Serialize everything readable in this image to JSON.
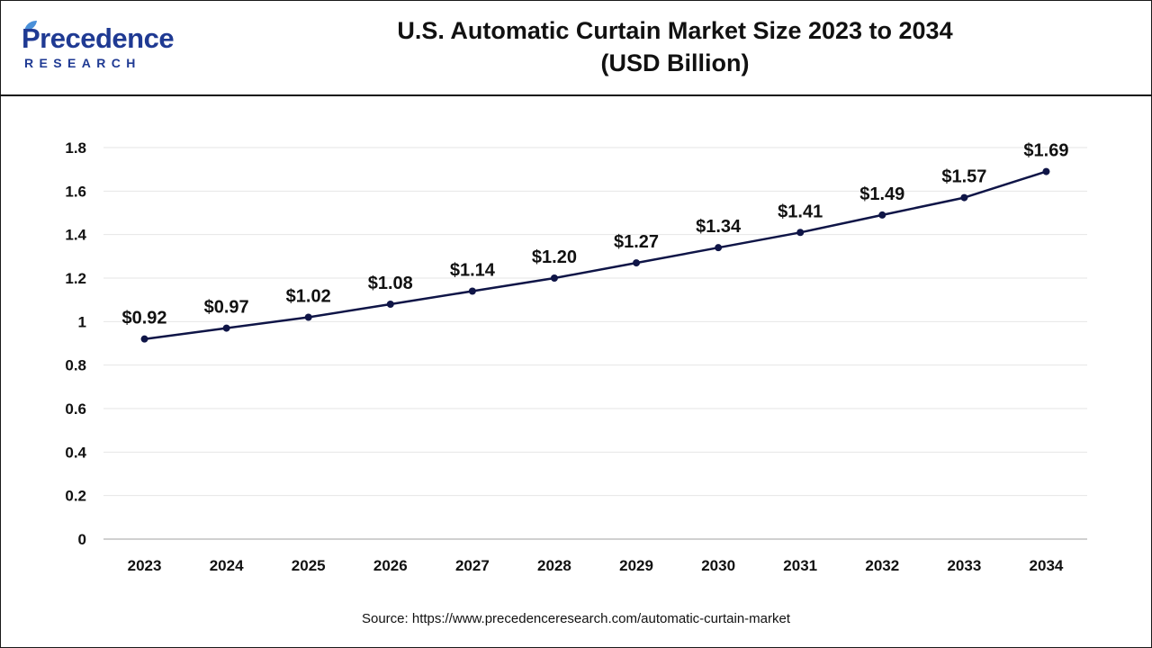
{
  "brand": {
    "name": "Precedence",
    "sub": "RESEARCH",
    "primary_color": "#1f3a93",
    "accent_color": "#4a90d9"
  },
  "title_lines": [
    "U.S. Automatic Curtain Market Size 2023 to 2034",
    "(USD Billion)"
  ],
  "source": "Source: https://www.precedenceresearch.com/automatic-curtain-market",
  "chart_data": {
    "type": "line",
    "x": [
      "2023",
      "2024",
      "2025",
      "2026",
      "2027",
      "2028",
      "2029",
      "2030",
      "2031",
      "2032",
      "2033",
      "2034"
    ],
    "series": [
      {
        "values": [
          0.92,
          0.97,
          1.02,
          1.08,
          1.14,
          1.2,
          1.27,
          1.34,
          1.41,
          1.49,
          1.57,
          1.69
        ],
        "data_labels": [
          "$0.92",
          "$0.97",
          "$1.02",
          "$1.08",
          "$1.14",
          "$1.20",
          "$1.27",
          "$1.34",
          "$1.41",
          "$1.49",
          "$1.57",
          "$1.69"
        ],
        "color": "#0f1547"
      }
    ],
    "yticks": [
      "0",
      "0.2",
      "0.4",
      "0.6",
      "0.8",
      "1",
      "1.2",
      "1.4",
      "1.6",
      "1.8"
    ],
    "ylim": [
      0,
      1.8
    ],
    "grid": true,
    "legend": "none"
  }
}
